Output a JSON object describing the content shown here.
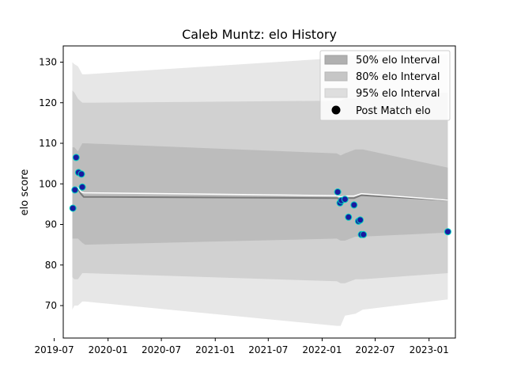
{
  "chart_data": {
    "type": "line",
    "title": "Caleb Muntz: elo History",
    "xlabel": "",
    "ylabel": "elo score",
    "xlim": [
      "2019-08-01",
      "2023-04-01"
    ],
    "ylim": [
      62,
      134
    ],
    "x_ticks": [
      "2019-07",
      "2020-01",
      "2020-07",
      "2021-01",
      "2021-07",
      "2022-01",
      "2022-07",
      "2023-01"
    ],
    "x_tick_labels": [
      "2019-07",
      "2020-01",
      "2020-07",
      "2021-01",
      "2021-07",
      "2022-01",
      "2022-07",
      "2023-01"
    ],
    "y_ticks": [
      70,
      80,
      90,
      100,
      110,
      120,
      130
    ],
    "y_tick_labels": [
      "70",
      "80",
      "90",
      "100",
      "110",
      "120",
      "130"
    ],
    "grid": false,
    "legend_position": "top-right",
    "legend": [
      {
        "label": "50% elo Interval",
        "color": "#a8a8a8"
      },
      {
        "label": "80% elo Interval",
        "color": "#c2c2c2"
      },
      {
        "label": "95% elo Interval",
        "color": "#dcdcdc"
      },
      {
        "label": "Post Match elo",
        "color": "#000000"
      }
    ],
    "bands": [
      {
        "name": "95% elo Interval",
        "color": "#e3e3e3",
        "x": [
          "2019-09-01",
          "2019-09-08",
          "2019-09-20",
          "2019-10-05",
          "2019-10-15",
          "2022-02-20",
          "2022-03-05",
          "2022-03-20",
          "2022-04-25",
          "2022-05-20",
          "2023-03-06"
        ],
        "upper": [
          130,
          129.5,
          129,
          127,
          127,
          131,
          131.2,
          131.5,
          131.5,
          131.5,
          132
        ],
        "lower": [
          69,
          70,
          70,
          71,
          71,
          65,
          65,
          67.5,
          68,
          69,
          71.5
        ]
      },
      {
        "name": "80% elo Interval",
        "color": "#cccccc",
        "x": [
          "2019-09-01",
          "2019-09-08",
          "2019-09-20",
          "2019-10-05",
          "2019-10-15",
          "2022-02-20",
          "2022-03-05",
          "2022-03-20",
          "2022-04-25",
          "2022-05-20",
          "2023-03-06"
        ],
        "upper": [
          123,
          122.5,
          121,
          120,
          120,
          120.5,
          120.5,
          121,
          121,
          121.5,
          122.5
        ],
        "lower": [
          77,
          76.5,
          76.5,
          78,
          78,
          76,
          75.5,
          75.5,
          76.5,
          76.5,
          78
        ]
      },
      {
        "name": "50% elo Interval",
        "color": "#b8b8b8",
        "x": [
          "2019-09-01",
          "2019-09-08",
          "2019-09-20",
          "2019-10-05",
          "2019-10-15",
          "2022-02-20",
          "2022-03-05",
          "2022-03-20",
          "2022-04-25",
          "2022-05-20",
          "2023-03-06"
        ],
        "upper": [
          109,
          109,
          108,
          110,
          110,
          107.5,
          107,
          107.5,
          108.5,
          108.5,
          104
        ],
        "lower": [
          86.5,
          86.5,
          86.5,
          85.5,
          85,
          86.5,
          86,
          86,
          87,
          87,
          88
        ]
      }
    ],
    "series": [
      {
        "name": "",
        "color": "#7a7a7a",
        "x": [
          "2019-09-01",
          "2019-09-12",
          "2019-09-20",
          "2019-10-01",
          "2019-10-10",
          "2022-02-20",
          "2022-03-05",
          "2022-03-25",
          "2022-04-20",
          "2022-05-15",
          "2023-03-06"
        ],
        "y": [
          98.3,
          98.5,
          98.8,
          97.5,
          96.8,
          96.5,
          96.2,
          96.5,
          96.5,
          97.2,
          96.0
        ]
      },
      {
        "name": "",
        "color": "#ffffff",
        "x": [
          "2019-09-01",
          "2019-09-12",
          "2019-09-20",
          "2019-10-01",
          "2019-10-10",
          "2022-02-20",
          "2022-03-05",
          "2022-03-25",
          "2022-04-20",
          "2022-05-15",
          "2023-03-06"
        ],
        "y": [
          98.6,
          98.8,
          99.1,
          98.0,
          97.8,
          97.1,
          96.8,
          97.0,
          97.0,
          97.6,
          96.0
        ]
      }
    ],
    "points": {
      "name": "Post Match elo",
      "x": [
        "2019-09-03",
        "2019-09-10",
        "2019-09-14",
        "2019-09-22",
        "2019-10-02",
        "2019-10-05",
        "2022-02-23",
        "2022-03-03",
        "2022-03-08",
        "2022-03-20",
        "2022-04-01",
        "2022-04-20",
        "2022-05-05",
        "2022-05-11",
        "2022-05-15",
        "2022-05-22",
        "2023-03-06"
      ],
      "y": [
        94,
        98.5,
        106.5,
        102.8,
        102.4,
        99.2,
        98,
        95.3,
        95.9,
        96.2,
        91.8,
        94.8,
        90.8,
        91.1,
        87.5,
        87.5,
        88.2
      ],
      "fill": "#1a1aa0",
      "edge": "#00d0c0"
    }
  }
}
